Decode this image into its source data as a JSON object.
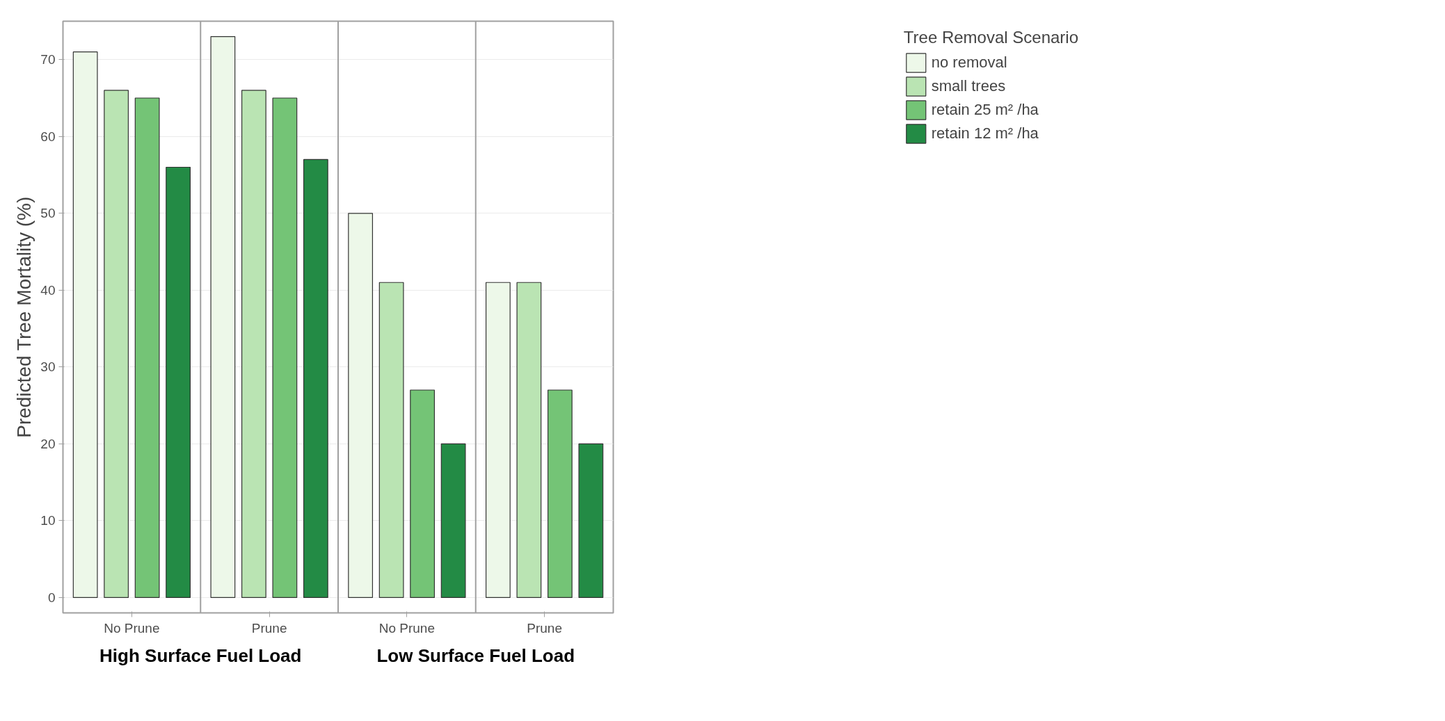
{
  "chart_data": {
    "type": "bar",
    "ylabel": "Predicted Tree Mortality (%)",
    "legend_title": "Tree Removal Scenario",
    "categories": [
      "No Prune",
      "Prune",
      "No Prune",
      "Prune"
    ],
    "annotations": [
      "High Surface Fuel Load",
      "Low Surface Fuel Load"
    ],
    "series": [
      {
        "name": "no removal",
        "color": "#edf8e9",
        "values": [
          71,
          73,
          50,
          41
        ]
      },
      {
        "name": "small trees",
        "color": "#bae4b3",
        "values": [
          66,
          66,
          41,
          41
        ]
      },
      {
        "name": "retain 25 m² /ha",
        "color": "#74c476",
        "values": [
          65,
          65,
          27,
          27
        ]
      },
      {
        "name": "retain 12 m² /ha",
        "color": "#238b45",
        "values": [
          56,
          57,
          20,
          20
        ]
      }
    ],
    "ylim": [
      -2,
      75
    ],
    "yticks": [
      0,
      10,
      20,
      30,
      40,
      50,
      60,
      70
    ],
    "grid": "y",
    "legend": "right"
  }
}
